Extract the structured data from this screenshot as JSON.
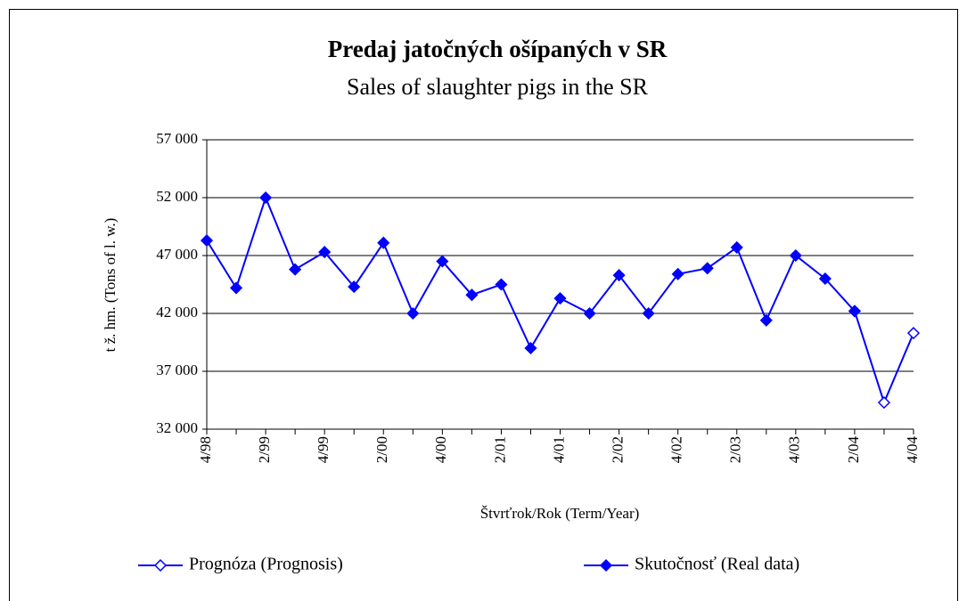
{
  "chart_data": {
    "type": "line",
    "title": "Predaj jatočných ošípaných v SR",
    "subtitle": "Sales of slaughter pigs in the SR",
    "y_label": "t ž. hm. (Tons of l. w.)",
    "x_label": "Štvrťrok/Rok (Term/Year)",
    "categories": [
      "4/98",
      null,
      "2/99",
      null,
      "4/99",
      null,
      "2/00",
      null,
      "4/00",
      null,
      "2/01",
      null,
      "4/01",
      null,
      "2/02",
      null,
      "4/02",
      null,
      "2/03",
      null,
      "4/03",
      null,
      "2/04",
      null,
      "4/04"
    ],
    "series": [
      {
        "name": "Prognóza (Prognosis)",
        "color": "#0000ff",
        "filled": false,
        "values": [
          null,
          null,
          null,
          null,
          null,
          null,
          null,
          null,
          null,
          null,
          null,
          null,
          null,
          null,
          null,
          null,
          null,
          null,
          null,
          null,
          null,
          null,
          42200,
          34300,
          40300
        ]
      },
      {
        "name": "Skutočnosť (Real data)",
        "color": "#0000ff",
        "filled": true,
        "values": [
          48300,
          44200,
          52000,
          45800,
          47300,
          44300,
          48100,
          42000,
          46500,
          43600,
          44500,
          39000,
          43300,
          42000,
          45300,
          42000,
          45400,
          45900,
          47700,
          41400,
          47000,
          45000,
          42200,
          null,
          null
        ]
      }
    ],
    "ylim": [
      32000,
      57000
    ],
    "yticks": [
      {
        "value": 32000,
        "label": "32 000"
      },
      {
        "value": 37000,
        "label": "37 000"
      },
      {
        "value": 42000,
        "label": "42 000"
      },
      {
        "value": 47000,
        "label": "47 000"
      },
      {
        "value": 52000,
        "label": "52 000"
      },
      {
        "value": 57000,
        "label": "57 000"
      }
    ],
    "grid": true,
    "legend": "bottom"
  }
}
